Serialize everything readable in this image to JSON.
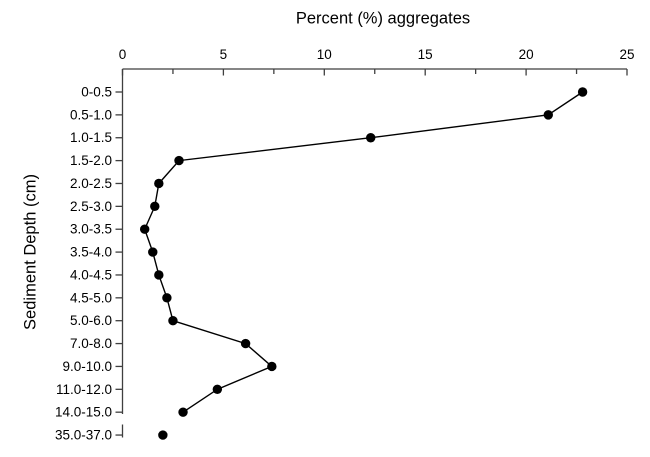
{
  "chart_data": {
    "type": "line",
    "title": "Percent (%) aggregates",
    "xlabel": "Percent (%) aggregates",
    "ylabel": "Sediment Depth (cm)",
    "x_axis": {
      "min": 0,
      "max": 25,
      "position": "top",
      "major_ticks": [
        0,
        5,
        10,
        15,
        20,
        25
      ],
      "minor_ticks": [
        2.5,
        7.5,
        12.5,
        17.5,
        22.5
      ]
    },
    "categories": [
      "0-0.5",
      "0.5-1.0",
      "1.0-1.5",
      "1.5-2.0",
      "2.0-2.5",
      "2.5-3.0",
      "3.0-3.5",
      "3.5-4.0",
      "4.0-4.5",
      "4.5-5.0",
      "5.0-6.0",
      "7.0-8.0",
      "9.0-10.0",
      "11.0-12.0",
      "14.0-15.0",
      "35.0-37.0"
    ],
    "values": [
      22.8,
      21.1,
      12.3,
      2.8,
      1.8,
      1.6,
      1.1,
      1.5,
      1.8,
      2.2,
      2.5,
      6.1,
      7.4,
      4.7,
      3.0,
      2.0
    ],
    "line_connects_first_n": 15,
    "axis_break_after_category_index": 14,
    "marker": "filled-circle",
    "legend": "none",
    "grid": "off",
    "colors": {
      "marker": "#000000",
      "line": "#000000",
      "axis": "#3f3f3f",
      "text": "#000000",
      "background": "#ffffff"
    }
  }
}
